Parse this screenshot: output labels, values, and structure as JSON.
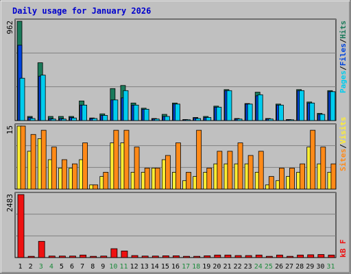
{
  "title": "Daily usage for January 2026",
  "colors": {
    "background": "#c0c0c0",
    "title_text": "#0000cc",
    "hits_dark": "#1b7a5a",
    "files": "#0044dd",
    "pages": "#00ccee",
    "visits": "#ffee33",
    "sites": "#ff8a18",
    "kbytes": "#ee1111",
    "weekend_label": "#1b8a3a",
    "weekday_label": "#000000"
  },
  "right_labels": {
    "top": [
      "Pages",
      "/",
      "Files",
      "/",
      "Hits"
    ],
    "middle": [
      "Sites",
      "/",
      "Visits"
    ],
    "bottom": [
      "kB",
      "F"
    ]
  },
  "chart_data": [
    {
      "type": "bar",
      "title": "Daily usage for January 2026",
      "ymax_label": "962",
      "ylim": [
        0,
        962
      ],
      "categories": [
        "1",
        "2",
        "3",
        "4",
        "5",
        "6",
        "7",
        "8",
        "9",
        "10",
        "11",
        "12",
        "13",
        "14",
        "15",
        "16",
        "17",
        "18",
        "19",
        "20",
        "21",
        "22",
        "23",
        "24",
        "25",
        "26",
        "27",
        "28",
        "29",
        "30",
        "31"
      ],
      "weekend_days": [
        "3",
        "4",
        "10",
        "11",
        "17",
        "18",
        "24",
        "25",
        "31"
      ],
      "series": [
        {
          "name": "Hits",
          "values": [
            962,
            40,
            560,
            40,
            40,
            40,
            190,
            25,
            65,
            310,
            340,
            170,
            120,
            20,
            60,
            170,
            10,
            30,
            40,
            140,
            300,
            20,
            165,
            275,
            20,
            160,
            10,
            300,
            180,
            70,
            290
          ]
        },
        {
          "name": "Files",
          "values": [
            730,
            30,
            430,
            20,
            20,
            30,
            150,
            20,
            50,
            200,
            220,
            150,
            110,
            15,
            40,
            160,
            8,
            25,
            30,
            130,
            290,
            15,
            160,
            240,
            15,
            150,
            8,
            290,
            170,
            60,
            280
          ]
        },
        {
          "name": "Pages",
          "values": [
            410,
            20,
            440,
            15,
            15,
            25,
            150,
            20,
            50,
            200,
            290,
            150,
            110,
            15,
            40,
            160,
            8,
            20,
            30,
            130,
            290,
            15,
            160,
            250,
            15,
            150,
            8,
            290,
            170,
            60,
            280
          ]
        }
      ]
    },
    {
      "type": "bar",
      "ymax_label": "15",
      "ylim": [
        0,
        15
      ],
      "categories": [
        "1",
        "2",
        "3",
        "4",
        "5",
        "6",
        "7",
        "8",
        "9",
        "10",
        "11",
        "12",
        "13",
        "14",
        "15",
        "16",
        "17",
        "18",
        "19",
        "20",
        "21",
        "22",
        "23",
        "24",
        "25",
        "26",
        "27",
        "28",
        "29",
        "30",
        "31"
      ],
      "series": [
        {
          "name": "Visits",
          "values": [
            15,
            9,
            12,
            7,
            5,
            5,
            7,
            1,
            3,
            11,
            11,
            4,
            4,
            5,
            7,
            4,
            2,
            3,
            4,
            6,
            6,
            6,
            6,
            4,
            1,
            2,
            3,
            4,
            10,
            6,
            4
          ]
        },
        {
          "name": "Sites",
          "values": [
            15,
            13,
            14,
            10,
            7,
            6,
            11,
            1,
            4,
            14,
            14,
            10,
            5,
            5,
            8,
            11,
            4,
            14,
            5,
            9,
            9,
            11,
            8,
            9,
            3,
            5,
            5,
            6,
            14,
            10,
            6
          ]
        }
      ]
    },
    {
      "type": "bar",
      "ymax_label": "2483",
      "ylim": [
        0,
        2483
      ],
      "categories": [
        "1",
        "2",
        "3",
        "4",
        "5",
        "6",
        "7",
        "8",
        "9",
        "10",
        "11",
        "12",
        "13",
        "14",
        "15",
        "16",
        "17",
        "18",
        "19",
        "20",
        "21",
        "22",
        "23",
        "24",
        "25",
        "26",
        "27",
        "28",
        "29",
        "30",
        "31"
      ],
      "series": [
        {
          "name": "kB F",
          "values": [
            2483,
            50,
            640,
            60,
            60,
            60,
            100,
            50,
            60,
            350,
            260,
            80,
            60,
            60,
            70,
            70,
            50,
            50,
            70,
            100,
            100,
            80,
            80,
            100,
            50,
            100,
            50,
            100,
            110,
            120,
            100
          ]
        }
      ]
    }
  ]
}
